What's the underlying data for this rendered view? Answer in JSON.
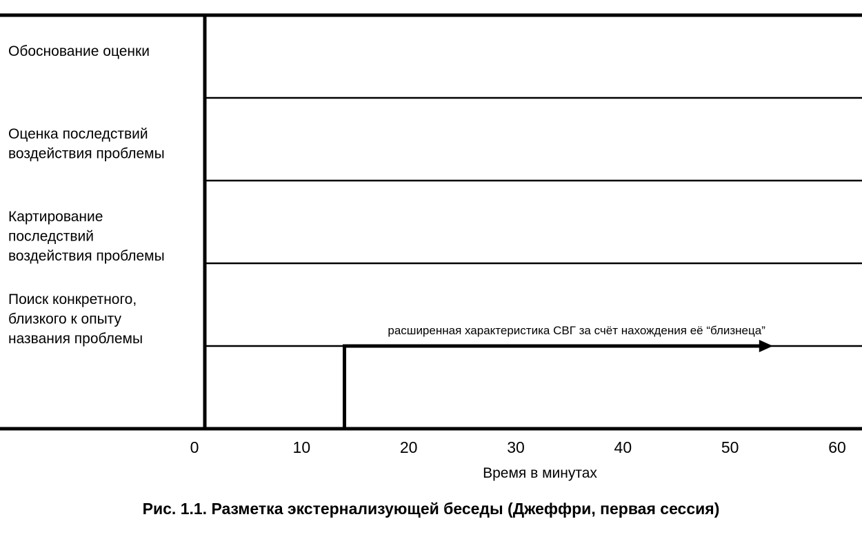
{
  "chart_data": {
    "type": "timeline",
    "title": "Рис. 1.1. Разметка экстернализующей беседы (Джеффри, первая сессия)",
    "x_label": "Время в минутах",
    "rows": [
      [
        "Обоснование оценки"
      ],
      [
        "Оценка последствий",
        "воздействия проблемы"
      ],
      [
        "Картирование",
        "последствий",
        "воздействия проблемы"
      ],
      [
        "Поиск конкретного,",
        "близкого к опыту",
        "названия проблемы"
      ]
    ],
    "xlim": [
      0,
      60
    ],
    "xticks": [
      0,
      10,
      20,
      30,
      40,
      50,
      60
    ],
    "step": {
      "x": [
        14,
        54
      ],
      "label": "расширенная характеристика СВГ за счёт нахождения её “близнеца”"
    }
  }
}
